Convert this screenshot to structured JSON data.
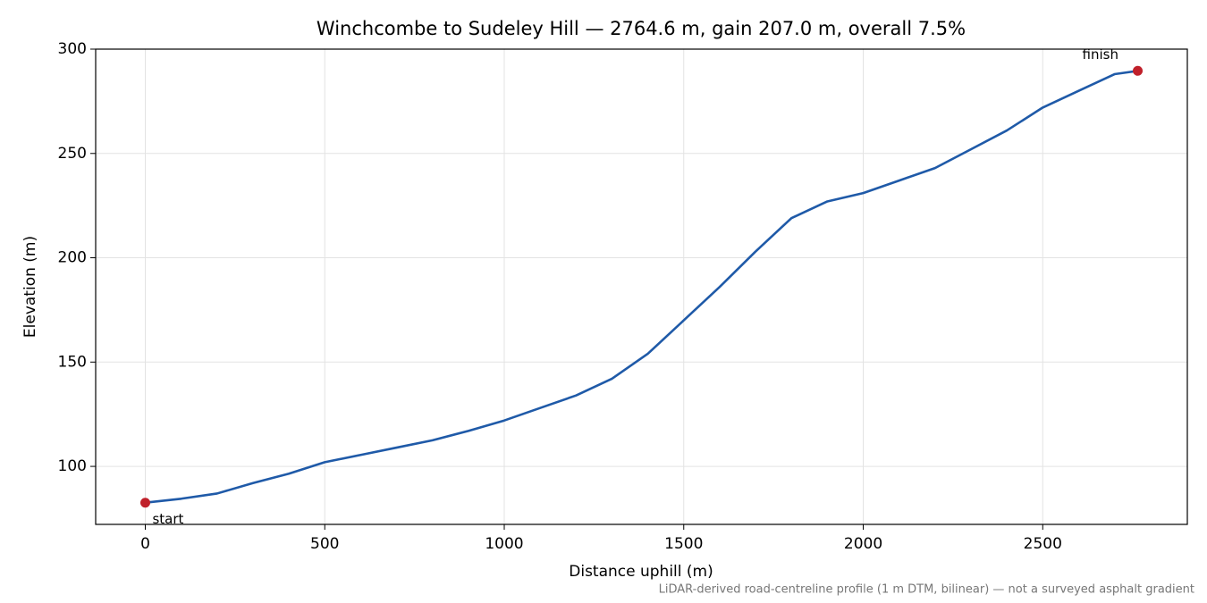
{
  "chart_data": {
    "type": "line",
    "title": "Winchcombe to Sudeley Hill — 2764.6 m, gain 207.0 m, overall 7.5%",
    "xlabel": "Distance uphill (m)",
    "ylabel": "Elevation (m)",
    "footnote": "LiDAR-derived road-centreline profile (1 m DTM, bilinear) — not a surveyed asphalt gradient",
    "x": [
      0,
      100,
      200,
      300,
      400,
      500,
      600,
      700,
      800,
      900,
      1000,
      1100,
      1200,
      1300,
      1400,
      1500,
      1600,
      1700,
      1800,
      1900,
      2000,
      2100,
      2200,
      2300,
      2400,
      2500,
      2600,
      2700,
      2764.6
    ],
    "series": [
      {
        "name": "Elevation",
        "color": "#1f5aa8",
        "values": [
          82.6,
          84.5,
          87,
          92,
          96.5,
          102,
          105.5,
          109,
          112.5,
          117,
          122,
          128,
          134,
          142,
          154,
          170,
          186,
          203,
          219,
          227,
          231,
          237,
          243,
          252,
          261,
          272,
          280,
          288,
          289.6
        ]
      }
    ],
    "annotations": [
      {
        "text": "start",
        "x": 0,
        "y": 82.6
      },
      {
        "text": "finish",
        "x": 2764.6,
        "y": 289.6
      }
    ],
    "marker_color": "#c0202a",
    "xlim": [
      -138.2,
      2902.8
    ],
    "ylim": [
      72.2,
      300
    ],
    "xticks": [
      0,
      500,
      1000,
      1500,
      2000,
      2500
    ],
    "yticks": [
      100,
      150,
      200,
      250,
      300
    ],
    "grid": true
  }
}
